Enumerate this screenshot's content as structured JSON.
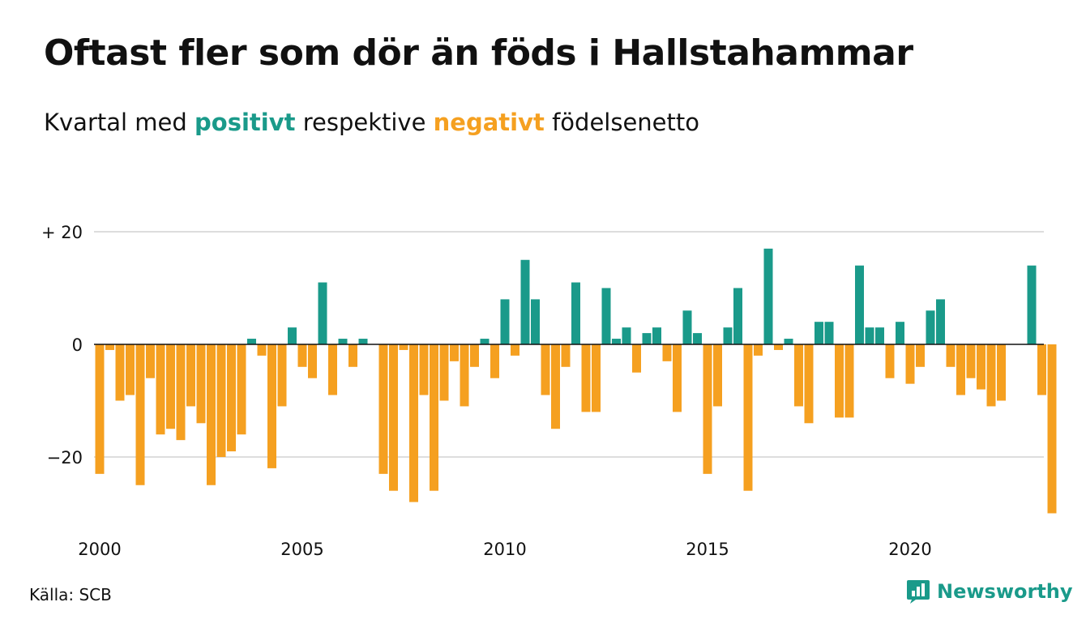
{
  "title": "Oftast fler som dör än föds i Hallstahammar",
  "subtitle": {
    "prefix": "Kvartal med ",
    "positive": "positivt",
    "middle": " respektive ",
    "negative": "negativt",
    "suffix": " födelsenetto"
  },
  "source": "Källa: SCB",
  "brand": "Newsworthy",
  "colors": {
    "positive": "#1a9a8a",
    "negative": "#f5a020",
    "grid": "#dddddd",
    "axis": "#111111"
  },
  "chart_data": {
    "type": "bar",
    "start_year": 2000,
    "periods_per_year": 4,
    "ylim": [
      -30,
      20
    ],
    "yticks": [
      {
        "value": 20,
        "label": "+ 20"
      },
      {
        "value": 0,
        "label": "0"
      },
      {
        "value": -20,
        "label": "−20"
      }
    ],
    "xticks": [
      {
        "year": 2000,
        "label": "2000"
      },
      {
        "year": 2005,
        "label": "2005"
      },
      {
        "year": 2010,
        "label": "2010"
      },
      {
        "year": 2015,
        "label": "2015"
      },
      {
        "year": 2020,
        "label": "2020"
      }
    ],
    "grid": true,
    "values": [
      -23,
      -1,
      -10,
      -9,
      -25,
      -6,
      -16,
      -15,
      -17,
      -11,
      -14,
      -25,
      -20,
      -19,
      -16,
      1,
      -2,
      -22,
      -11,
      3,
      -4,
      -6,
      11,
      -9,
      1,
      -4,
      1,
      0,
      -23,
      -26,
      -1,
      -28,
      -9,
      -26,
      -10,
      -3,
      -11,
      -4,
      1,
      -6,
      8,
      -2,
      15,
      8,
      -9,
      -15,
      -4,
      11,
      -12,
      -12,
      10,
      1,
      3,
      -5,
      2,
      3,
      -3,
      -12,
      6,
      2,
      -23,
      -11,
      3,
      10,
      -26,
      -2,
      17,
      -1,
      1,
      -11,
      -14,
      4,
      4,
      -13,
      -13,
      14,
      3,
      3,
      -6,
      4,
      -7,
      -4,
      6,
      8,
      -4,
      -9,
      -6,
      -8,
      -11,
      -10,
      0,
      0,
      14,
      -9,
      -30
    ]
  }
}
